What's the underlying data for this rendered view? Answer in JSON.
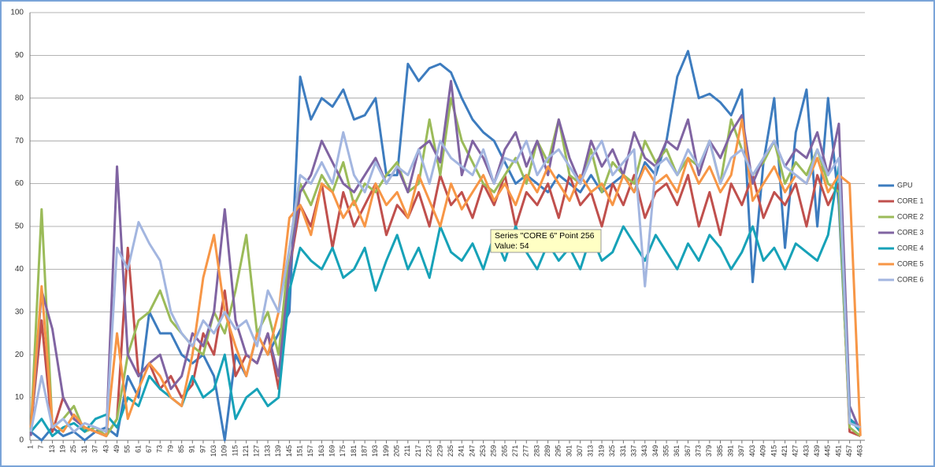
{
  "chart_data": {
    "type": "line",
    "x": [
      1,
      7,
      13,
      19,
      25,
      31,
      37,
      43,
      49,
      55,
      61,
      67,
      73,
      79,
      85,
      91,
      97,
      103,
      109,
      115,
      121,
      127,
      133,
      139,
      145,
      151,
      157,
      163,
      169,
      175,
      181,
      187,
      193,
      199,
      205,
      211,
      217,
      223,
      229,
      235,
      241,
      247,
      253,
      259,
      265,
      271,
      277,
      283,
      289,
      295,
      301,
      307,
      313,
      319,
      325,
      331,
      337,
      343,
      349,
      355,
      361,
      367,
      373,
      379,
      385,
      391,
      397,
      403,
      409,
      415,
      421,
      427,
      433,
      439,
      445,
      451,
      457,
      463
    ],
    "xlim": [
      0.5,
      465.5
    ],
    "xticks": [
      1,
      7,
      13,
      19,
      25,
      31,
      37,
      43,
      49,
      55,
      61,
      67,
      73,
      79,
      85,
      91,
      97,
      103,
      109,
      115,
      121,
      127,
      133,
      139,
      145,
      151,
      157,
      163,
      169,
      175,
      181,
      187,
      193,
      199,
      205,
      211,
      217,
      223,
      229,
      235,
      241,
      247,
      253,
      259,
      265,
      271,
      277,
      283,
      289,
      295,
      301,
      307,
      313,
      319,
      325,
      331,
      337,
      343,
      349,
      355,
      361,
      367,
      373,
      379,
      385,
      391,
      397,
      403,
      409,
      415,
      421,
      427,
      433,
      439,
      445,
      451,
      457,
      463
    ],
    "ylim": [
      0,
      100
    ],
    "yticks": [
      0,
      10,
      20,
      30,
      40,
      50,
      60,
      70,
      80,
      90,
      100
    ],
    "grid": true,
    "legend": "right",
    "series": [
      {
        "name": "GPU",
        "color": "#3d7cbf",
        "values": [
          2,
          0,
          3,
          1,
          2,
          0,
          2,
          3,
          1,
          15,
          10,
          30,
          25,
          25,
          20,
          18,
          20,
          15,
          0,
          20,
          15,
          25,
          20,
          25,
          30,
          85,
          75,
          80,
          78,
          82,
          75,
          76,
          80,
          62,
          62,
          88,
          84,
          87,
          88,
          86,
          80,
          75,
          72,
          70,
          65,
          60,
          62,
          60,
          58,
          62,
          60,
          58,
          62,
          58,
          60,
          62,
          58,
          65,
          62,
          70,
          85,
          91,
          80,
          81,
          79,
          76,
          82,
          37,
          65,
          80,
          45,
          72,
          82,
          50,
          80,
          55,
          5,
          3
        ]
      },
      {
        "name": "CORE 1",
        "color": "#c0504d",
        "values": [
          3,
          28,
          2,
          10,
          5,
          3,
          2,
          1,
          5,
          45,
          15,
          18,
          12,
          15,
          10,
          13,
          25,
          20,
          35,
          15,
          20,
          18,
          25,
          12,
          40,
          55,
          50,
          60,
          45,
          58,
          50,
          55,
          60,
          48,
          55,
          52,
          58,
          50,
          62,
          55,
          58,
          52,
          60,
          55,
          62,
          50,
          58,
          55,
          60,
          52,
          62,
          55,
          58,
          50,
          60,
          55,
          62,
          52,
          58,
          60,
          55,
          62,
          50,
          58,
          48,
          60,
          55,
          62,
          52,
          58,
          55,
          60,
          50,
          62,
          55,
          60,
          2,
          1
        ]
      },
      {
        "name": "CORE 2",
        "color": "#9bbb59",
        "values": [
          2,
          54,
          3,
          5,
          8,
          2,
          3,
          1,
          5,
          20,
          28,
          30,
          35,
          28,
          25,
          22,
          20,
          30,
          25,
          35,
          48,
          25,
          30,
          20,
          45,
          60,
          55,
          62,
          58,
          65,
          55,
          60,
          58,
          62,
          65,
          58,
          60,
          75,
          62,
          80,
          70,
          65,
          60,
          58,
          62,
          66,
          60,
          70,
          65,
          75,
          62,
          60,
          68,
          58,
          65,
          62,
          60,
          70,
          65,
          68,
          62,
          66,
          64,
          70,
          60,
          75,
          68,
          62,
          65,
          70,
          60,
          65,
          62,
          68,
          60,
          58,
          3,
          1
        ]
      },
      {
        "name": "CORE 3",
        "color": "#8064a2",
        "values": [
          1,
          35,
          26,
          10,
          5,
          3,
          2,
          1,
          64,
          20,
          15,
          18,
          20,
          12,
          15,
          25,
          22,
          30,
          54,
          28,
          20,
          18,
          25,
          15,
          40,
          58,
          62,
          70,
          65,
          60,
          58,
          62,
          66,
          60,
          64,
          58,
          68,
          70,
          65,
          84,
          62,
          70,
          66,
          60,
          68,
          72,
          64,
          70,
          62,
          75,
          66,
          60,
          70,
          64,
          68,
          62,
          72,
          66,
          64,
          70,
          68,
          75,
          62,
          70,
          66,
          72,
          76,
          60,
          66,
          70,
          64,
          68,
          66,
          72,
          62,
          74,
          8,
          2
        ]
      },
      {
        "name": "CORE 4",
        "color": "#17a2b8",
        "values": [
          2,
          5,
          1,
          3,
          4,
          2,
          5,
          6,
          3,
          10,
          8,
          15,
          12,
          10,
          8,
          15,
          10,
          12,
          20,
          5,
          10,
          12,
          8,
          10,
          35,
          45,
          42,
          40,
          45,
          38,
          40,
          45,
          35,
          42,
          48,
          40,
          45,
          38,
          50,
          44,
          42,
          46,
          40,
          48,
          42,
          50,
          44,
          40,
          46,
          42,
          45,
          40,
          48,
          42,
          44,
          50,
          46,
          42,
          48,
          44,
          40,
          46,
          42,
          48,
          45,
          40,
          44,
          50,
          42,
          45,
          40,
          46,
          44,
          42,
          48,
          64,
          5,
          2
        ]
      },
      {
        "name": "CORE 5",
        "color": "#f79646",
        "values": [
          3,
          36,
          4,
          2,
          6,
          3,
          2,
          1,
          25,
          5,
          12,
          18,
          15,
          10,
          8,
          20,
          38,
          48,
          30,
          22,
          15,
          25,
          20,
          30,
          52,
          55,
          48,
          60,
          58,
          52,
          56,
          50,
          60,
          55,
          58,
          52,
          62,
          56,
          50,
          60,
          54,
          58,
          62,
          56,
          60,
          55,
          62,
          58,
          64,
          60,
          56,
          62,
          58,
          60,
          55,
          62,
          58,
          64,
          60,
          62,
          58,
          66,
          60,
          64,
          58,
          62,
          75,
          56,
          60,
          64,
          58,
          62,
          60,
          66,
          58,
          62,
          60,
          1
        ]
      },
      {
        "name": "CORE 6",
        "color": "#a3b6e0",
        "values": [
          2,
          15,
          3,
          5,
          2,
          4,
          3,
          2,
          45,
          40,
          51,
          46,
          42,
          30,
          25,
          22,
          28,
          25,
          30,
          26,
          28,
          22,
          35,
          30,
          45,
          62,
          60,
          65,
          60,
          72,
          62,
          58,
          65,
          60,
          64,
          62,
          68,
          60,
          70,
          66,
          64,
          62,
          68,
          60,
          66,
          65,
          70,
          62,
          66,
          68,
          64,
          60,
          66,
          70,
          62,
          65,
          68,
          36,
          64,
          66,
          62,
          68,
          64,
          70,
          60,
          66,
          68,
          62,
          66,
          70,
          64,
          62,
          60,
          68,
          62,
          66,
          4,
          3
        ]
      }
    ],
    "tooltip": {
      "lines": [
        "Series \"CORE 6\" Point 256",
        "Value: 54"
      ]
    }
  }
}
